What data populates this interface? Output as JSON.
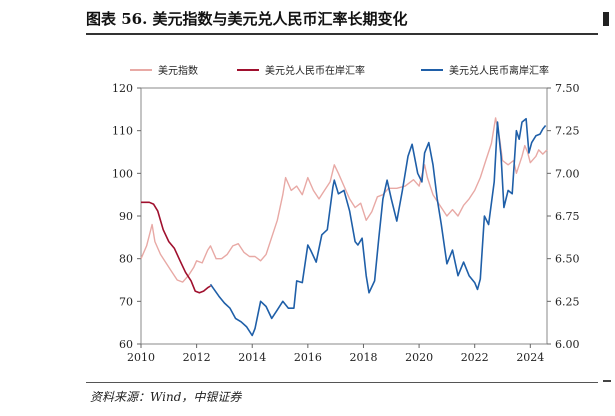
{
  "figure": {
    "title": "图表 56. 美元指数与美元兑人民币汇率长期变化",
    "source": "资料来源：Wind，中银证券"
  },
  "chart_data": {
    "type": "line",
    "title": "图表 56. 美元指数与美元兑人民币汇率长期变化",
    "x_range": [
      2010,
      2024.6
    ],
    "x_ticks": [
      "2010",
      "2012",
      "2014",
      "2016",
      "2018",
      "2020",
      "2022",
      "2024"
    ],
    "y_left": {
      "range": [
        60,
        120
      ],
      "ticks": [
        "60",
        "70",
        "80",
        "90",
        "100",
        "110",
        "120"
      ]
    },
    "y_right": {
      "range": [
        6.0,
        7.5
      ],
      "ticks": [
        "6.00",
        "6.25",
        "6.50",
        "6.75",
        "7.00",
        "7.25",
        "7.50"
      ]
    },
    "legend_position": "top",
    "colors": {
      "dxy": "#e8a9a5",
      "cny": "#a0102e",
      "cnh": "#1f5fa8"
    },
    "series": [
      {
        "name": "美元指数",
        "axis": "left",
        "points": [
          [
            2010.0,
            80
          ],
          [
            2010.2,
            83
          ],
          [
            2010.4,
            88
          ],
          [
            2010.5,
            84
          ],
          [
            2010.7,
            81
          ],
          [
            2010.9,
            79
          ],
          [
            2011.1,
            77
          ],
          [
            2011.3,
            75
          ],
          [
            2011.5,
            74.5
          ],
          [
            2011.7,
            76
          ],
          [
            2011.9,
            78
          ],
          [
            2012.0,
            79.5
          ],
          [
            2012.2,
            79
          ],
          [
            2012.4,
            82
          ],
          [
            2012.5,
            83
          ],
          [
            2012.7,
            80
          ],
          [
            2012.9,
            80
          ],
          [
            2013.1,
            81
          ],
          [
            2013.3,
            83
          ],
          [
            2013.5,
            83.5
          ],
          [
            2013.7,
            81.5
          ],
          [
            2013.9,
            80.5
          ],
          [
            2014.1,
            80.5
          ],
          [
            2014.3,
            79.5
          ],
          [
            2014.5,
            81
          ],
          [
            2014.7,
            85
          ],
          [
            2014.9,
            89
          ],
          [
            2015.1,
            95
          ],
          [
            2015.2,
            99
          ],
          [
            2015.4,
            96
          ],
          [
            2015.6,
            97
          ],
          [
            2015.8,
            95
          ],
          [
            2016.0,
            99
          ],
          [
            2016.2,
            96
          ],
          [
            2016.4,
            94
          ],
          [
            2016.6,
            96
          ],
          [
            2016.8,
            98
          ],
          [
            2016.95,
            102
          ],
          [
            2017.1,
            100
          ],
          [
            2017.3,
            97
          ],
          [
            2017.5,
            94
          ],
          [
            2017.7,
            92
          ],
          [
            2017.9,
            93
          ],
          [
            2018.1,
            89
          ],
          [
            2018.3,
            91
          ],
          [
            2018.5,
            94.5
          ],
          [
            2018.7,
            95
          ],
          [
            2018.9,
            96.5
          ],
          [
            2019.2,
            96.5
          ],
          [
            2019.5,
            97
          ],
          [
            2019.8,
            98.5
          ],
          [
            2020.0,
            97
          ],
          [
            2020.2,
            102
          ],
          [
            2020.3,
            99
          ],
          [
            2020.5,
            95
          ],
          [
            2020.7,
            93
          ],
          [
            2021.0,
            90
          ],
          [
            2021.2,
            91.5
          ],
          [
            2021.4,
            90
          ],
          [
            2021.6,
            92.5
          ],
          [
            2021.8,
            94
          ],
          [
            2022.0,
            96
          ],
          [
            2022.2,
            99
          ],
          [
            2022.4,
            103
          ],
          [
            2022.6,
            107
          ],
          [
            2022.75,
            113
          ],
          [
            2022.9,
            108
          ],
          [
            2023.0,
            103
          ],
          [
            2023.2,
            102
          ],
          [
            2023.4,
            103
          ],
          [
            2023.5,
            100
          ],
          [
            2023.7,
            104
          ],
          [
            2023.8,
            106.5
          ],
          [
            2023.9,
            105
          ],
          [
            2024.0,
            102.5
          ],
          [
            2024.2,
            104
          ],
          [
            2024.3,
            105.5
          ],
          [
            2024.45,
            104.5
          ],
          [
            2024.6,
            105.5
          ]
        ]
      },
      {
        "name": "美元兑人民币在岸汇率",
        "axis": "right",
        "points": [
          [
            2010.0,
            6.83
          ],
          [
            2010.3,
            6.83
          ],
          [
            2010.45,
            6.82
          ],
          [
            2010.6,
            6.78
          ],
          [
            2010.8,
            6.67
          ],
          [
            2011.0,
            6.6
          ],
          [
            2011.2,
            6.56
          ],
          [
            2011.4,
            6.49
          ],
          [
            2011.6,
            6.42
          ],
          [
            2011.8,
            6.37
          ],
          [
            2011.95,
            6.31
          ],
          [
            2012.1,
            6.3
          ],
          [
            2012.25,
            6.31
          ],
          [
            2012.4,
            6.33
          ],
          [
            2012.5,
            6.34
          ]
        ]
      },
      {
        "name": "美元兑人民币离岸汇率",
        "axis": "right",
        "points": [
          [
            2012.5,
            6.35
          ],
          [
            2012.8,
            6.28
          ],
          [
            2013.0,
            6.24
          ],
          [
            2013.2,
            6.21
          ],
          [
            2013.4,
            6.15
          ],
          [
            2013.6,
            6.13
          ],
          [
            2013.8,
            6.1
          ],
          [
            2014.0,
            6.05
          ],
          [
            2014.1,
            6.09
          ],
          [
            2014.3,
            6.25
          ],
          [
            2014.5,
            6.22
          ],
          [
            2014.7,
            6.15
          ],
          [
            2014.9,
            6.2
          ],
          [
            2015.1,
            6.25
          ],
          [
            2015.3,
            6.21
          ],
          [
            2015.5,
            6.21
          ],
          [
            2015.6,
            6.37
          ],
          [
            2015.8,
            6.36
          ],
          [
            2016.0,
            6.58
          ],
          [
            2016.1,
            6.55
          ],
          [
            2016.3,
            6.48
          ],
          [
            2016.5,
            6.64
          ],
          [
            2016.7,
            6.67
          ],
          [
            2016.9,
            6.92
          ],
          [
            2016.95,
            6.96
          ],
          [
            2017.1,
            6.88
          ],
          [
            2017.3,
            6.9
          ],
          [
            2017.5,
            6.78
          ],
          [
            2017.7,
            6.6
          ],
          [
            2017.8,
            6.58
          ],
          [
            2017.95,
            6.62
          ],
          [
            2018.1,
            6.4
          ],
          [
            2018.2,
            6.3
          ],
          [
            2018.4,
            6.37
          ],
          [
            2018.55,
            6.62
          ],
          [
            2018.7,
            6.85
          ],
          [
            2018.85,
            6.96
          ],
          [
            2019.0,
            6.85
          ],
          [
            2019.2,
            6.72
          ],
          [
            2019.4,
            6.9
          ],
          [
            2019.6,
            7.1
          ],
          [
            2019.75,
            7.17
          ],
          [
            2019.95,
            7.0
          ],
          [
            2020.1,
            6.95
          ],
          [
            2020.2,
            7.12
          ],
          [
            2020.35,
            7.18
          ],
          [
            2020.5,
            7.05
          ],
          [
            2020.65,
            6.85
          ],
          [
            2020.8,
            6.7
          ],
          [
            2021.0,
            6.47
          ],
          [
            2021.2,
            6.55
          ],
          [
            2021.4,
            6.4
          ],
          [
            2021.6,
            6.48
          ],
          [
            2021.8,
            6.4
          ],
          [
            2022.0,
            6.36
          ],
          [
            2022.1,
            6.32
          ],
          [
            2022.2,
            6.38
          ],
          [
            2022.35,
            6.75
          ],
          [
            2022.5,
            6.7
          ],
          [
            2022.7,
            6.95
          ],
          [
            2022.82,
            7.3
          ],
          [
            2022.95,
            7.1
          ],
          [
            2023.05,
            6.8
          ],
          [
            2023.2,
            6.9
          ],
          [
            2023.35,
            6.88
          ],
          [
            2023.5,
            7.25
          ],
          [
            2023.6,
            7.2
          ],
          [
            2023.7,
            7.3
          ],
          [
            2023.85,
            7.32
          ],
          [
            2023.95,
            7.12
          ],
          [
            2024.05,
            7.18
          ],
          [
            2024.2,
            7.22
          ],
          [
            2024.35,
            7.23
          ],
          [
            2024.45,
            7.26
          ],
          [
            2024.55,
            7.28
          ]
        ]
      }
    ]
  }
}
